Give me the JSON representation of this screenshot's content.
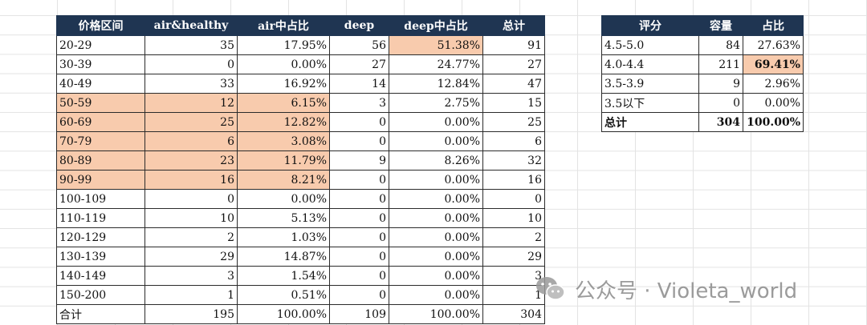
{
  "price_table": {
    "headers": [
      "价格区间",
      "air&healthy",
      "air中占比",
      "deep",
      "deep中占比",
      "总计"
    ],
    "rows": [
      {
        "range": "20-29",
        "air": "35",
        "air_pct": "17.95%",
        "deep": "56",
        "deep_pct": "51.38%",
        "total": "91",
        "hl_range": false,
        "hl_air": false,
        "hl_deep_pct": true
      },
      {
        "range": "30-39",
        "air": "0",
        "air_pct": "0.00%",
        "deep": "27",
        "deep_pct": "24.77%",
        "total": "27",
        "hl_range": false,
        "hl_air": false,
        "hl_deep_pct": false
      },
      {
        "range": "40-49",
        "air": "33",
        "air_pct": "16.92%",
        "deep": "14",
        "deep_pct": "12.84%",
        "total": "47",
        "hl_range": false,
        "hl_air": false,
        "hl_deep_pct": false
      },
      {
        "range": "50-59",
        "air": "12",
        "air_pct": "6.15%",
        "deep": "3",
        "deep_pct": "2.75%",
        "total": "15",
        "hl_range": true,
        "hl_air": true,
        "hl_deep_pct": false
      },
      {
        "range": "60-69",
        "air": "25",
        "air_pct": "12.82%",
        "deep": "0",
        "deep_pct": "0.00%",
        "total": "25",
        "hl_range": true,
        "hl_air": true,
        "hl_deep_pct": false
      },
      {
        "range": "70-79",
        "air": "6",
        "air_pct": "3.08%",
        "deep": "0",
        "deep_pct": "0.00%",
        "total": "6",
        "hl_range": true,
        "hl_air": true,
        "hl_deep_pct": false
      },
      {
        "range": "80-89",
        "air": "23",
        "air_pct": "11.79%",
        "deep": "9",
        "deep_pct": "8.26%",
        "total": "32",
        "hl_range": true,
        "hl_air": true,
        "hl_deep_pct": false
      },
      {
        "range": "90-99",
        "air": "16",
        "air_pct": "8.21%",
        "deep": "0",
        "deep_pct": "0.00%",
        "total": "16",
        "hl_range": true,
        "hl_air": true,
        "hl_deep_pct": false
      },
      {
        "range": "100-109",
        "air": "0",
        "air_pct": "0.00%",
        "deep": "0",
        "deep_pct": "0.00%",
        "total": "0",
        "hl_range": false,
        "hl_air": false,
        "hl_deep_pct": false
      },
      {
        "range": "110-119",
        "air": "10",
        "air_pct": "5.13%",
        "deep": "0",
        "deep_pct": "0.00%",
        "total": "10",
        "hl_range": false,
        "hl_air": false,
        "hl_deep_pct": false
      },
      {
        "range": "120-129",
        "air": "2",
        "air_pct": "1.03%",
        "deep": "0",
        "deep_pct": "0.00%",
        "total": "2",
        "hl_range": false,
        "hl_air": false,
        "hl_deep_pct": false
      },
      {
        "range": "130-139",
        "air": "29",
        "air_pct": "14.87%",
        "deep": "0",
        "deep_pct": "0.00%",
        "total": "29",
        "hl_range": false,
        "hl_air": false,
        "hl_deep_pct": false
      },
      {
        "range": "140-149",
        "air": "3",
        "air_pct": "1.54%",
        "deep": "0",
        "deep_pct": "0.00%",
        "total": "3",
        "hl_range": false,
        "hl_air": false,
        "hl_deep_pct": false
      },
      {
        "range": "150-200",
        "air": "1",
        "air_pct": "0.51%",
        "deep": "0",
        "deep_pct": "0.00%",
        "total": "1",
        "hl_range": false,
        "hl_air": false,
        "hl_deep_pct": false
      },
      {
        "range": "合计",
        "air": "195",
        "air_pct": "100.00%",
        "deep": "109",
        "deep_pct": "100.00%",
        "total": "304",
        "hl_range": false,
        "hl_air": false,
        "hl_deep_pct": false
      }
    ]
  },
  "rating_table": {
    "headers": [
      "评分",
      "容量",
      "占比"
    ],
    "rows": [
      {
        "score": "4.5-5.0",
        "count": "84",
        "pct": "27.63%",
        "bold": false,
        "hl_pct": false
      },
      {
        "score": "4.0-4.4",
        "count": "211",
        "pct": "69.41%",
        "bold": false,
        "hl_pct": true
      },
      {
        "score": "3.5-3.9",
        "count": "9",
        "pct": "2.96%",
        "bold": false,
        "hl_pct": false
      },
      {
        "score": "3.5以下",
        "count": "0",
        "pct": "0.00%",
        "bold": false,
        "hl_pct": false
      },
      {
        "score": "总计",
        "count": "304",
        "pct": "100.00%",
        "bold": true,
        "hl_pct": false
      }
    ]
  },
  "watermark": {
    "text": "公众号 · Violeta_world",
    "icon": "wechat-icon"
  },
  "colors": {
    "header_bg": "#1f3552",
    "header_text": "#ffffff",
    "highlight": "#f8cbad",
    "gridline": "#e3e3e3"
  }
}
